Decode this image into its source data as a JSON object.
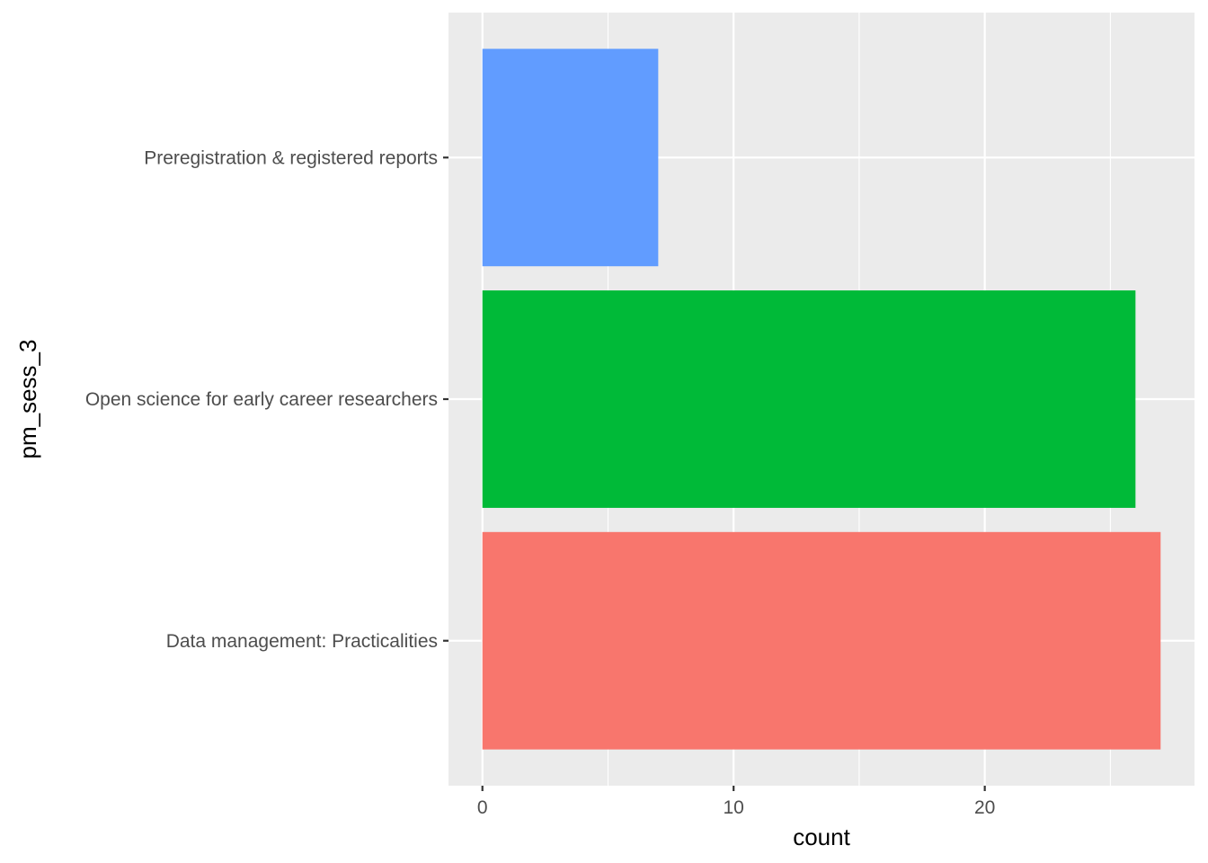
{
  "chart_data": {
    "type": "bar",
    "orientation": "horizontal",
    "xlabel": "count",
    "ylabel": "pm_sess_3",
    "categories": [
      "Data management: Practicalities",
      "Open science for early career researchers",
      "Preregistration & registered reports"
    ],
    "values": [
      27,
      26,
      7
    ],
    "bar_colors": [
      "#F8766D",
      "#00BA38",
      "#619CFF"
    ],
    "xlim": [
      -1.35,
      28.35
    ],
    "x_ticks": [
      0,
      10,
      20
    ],
    "x_tick_labels": [
      "0",
      "10",
      "20"
    ],
    "x_minor_ticks": [
      5,
      15,
      25
    ],
    "grid": true,
    "legend": "none",
    "panel_background": "#EBEBEB",
    "grid_color": "#FFFFFF"
  }
}
